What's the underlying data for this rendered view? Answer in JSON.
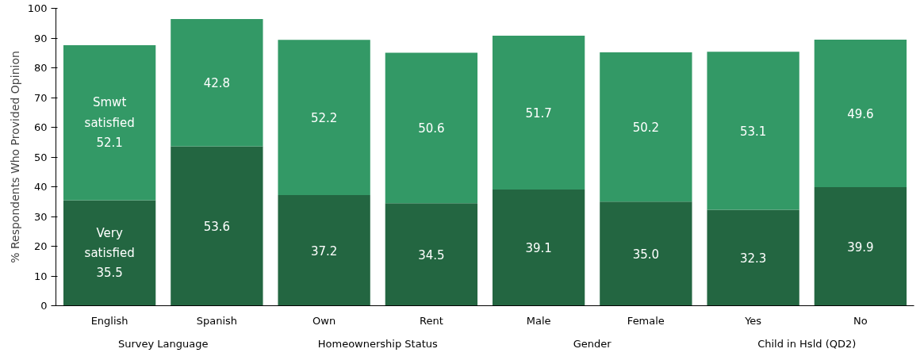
{
  "chart_data": {
    "type": "bar",
    "stacked": true,
    "ylabel": "% Respondents Who Provided Opinion",
    "categories": [
      "English",
      "Spanish",
      "Own",
      "Rent",
      "Male",
      "Female",
      "Yes",
      "No"
    ],
    "series": [
      {
        "name": "Very satisfied",
        "color": "#236641",
        "values": [
          35.5,
          53.6,
          37.2,
          34.5,
          39.1,
          35.0,
          32.3,
          39.9
        ],
        "value_labels": [
          "35.5",
          "53.6",
          "37.2",
          "34.5",
          "39.1",
          "35.0",
          "32.3",
          "39.9"
        ]
      },
      {
        "name": "Smwt satisfied",
        "color": "#339966",
        "values": [
          52.1,
          42.8,
          52.2,
          50.6,
          51.7,
          50.2,
          53.1,
          49.6
        ],
        "value_labels": [
          "52.1",
          "42.8",
          "52.2",
          "50.6",
          "51.7",
          "50.2",
          "53.1",
          "49.6"
        ]
      }
    ],
    "annotations": [
      "Survey Language",
      "Homeownership Status",
      "Gender",
      "Child in Hsld (QD2)"
    ],
    "ylim": [
      0,
      100
    ],
    "yticks": [
      0,
      10,
      20,
      30,
      40,
      50,
      60,
      70,
      80,
      90,
      100
    ],
    "grid": false
  }
}
